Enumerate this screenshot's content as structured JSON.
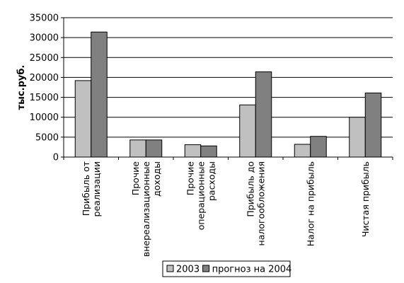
{
  "chart_data": {
    "type": "bar",
    "title": "",
    "xlabel": "",
    "ylabel": "тыс.руб.",
    "ylim": [
      0,
      35000
    ],
    "yticks": [
      0,
      5000,
      10000,
      15000,
      20000,
      25000,
      30000,
      35000
    ],
    "grid": "horizontal",
    "legend_position": "bottom",
    "categories": [
      [
        "Прибыль от",
        "реализации"
      ],
      [
        "Прочие",
        "внереализационные",
        "доходы"
      ],
      [
        "Прочие",
        "операционные",
        "расходы"
      ],
      [
        "Прибыль до",
        "налогообложения"
      ],
      [
        "Налог на прибыль"
      ],
      [
        "Чистая прибыль"
      ]
    ],
    "series": [
      {
        "name": "2003",
        "color": "#c0c0c0",
        "values": [
          19200,
          4300,
          3100,
          13100,
          3200,
          10000
        ]
      },
      {
        "name": "прогноз на 2004",
        "color": "#808080",
        "values": [
          31400,
          4300,
          2800,
          21400,
          5200,
          16100
        ]
      }
    ]
  }
}
